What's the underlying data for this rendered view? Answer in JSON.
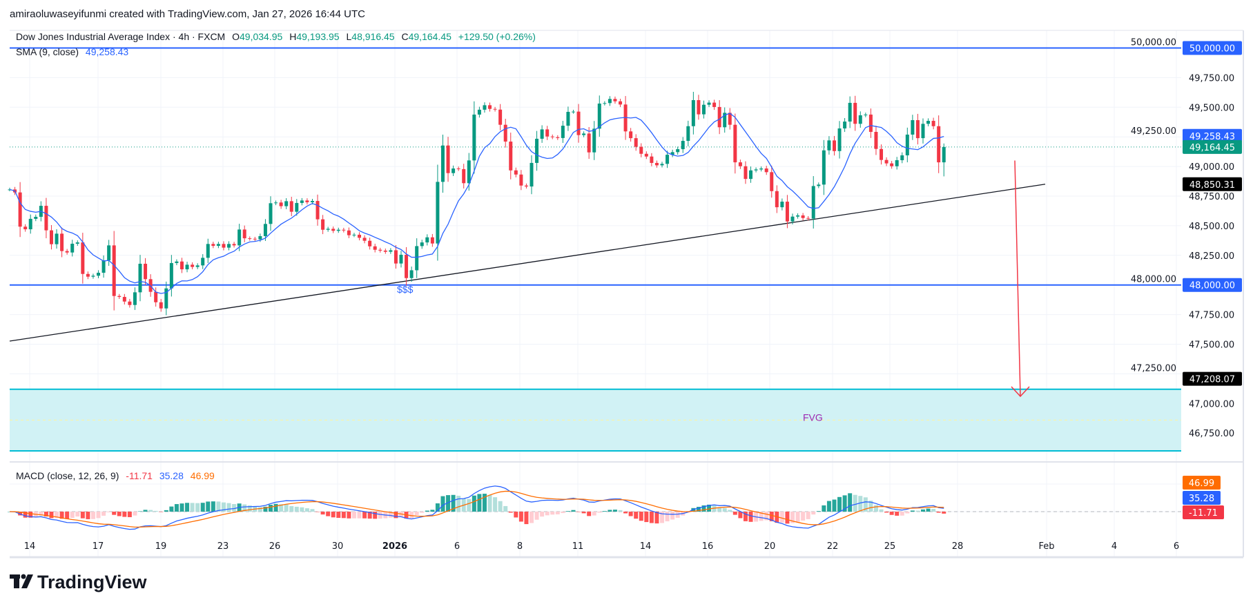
{
  "header": {
    "attribution": "amiraoluwaseyifunmi created with TradingView.com, Jan 27, 2026 16:44 UTC"
  },
  "legend": {
    "symbol": "Dow Jones Industrial Average Index · 4h · FXCM",
    "open_label": "O",
    "open": "49,034.95",
    "high_label": "H",
    "high": "49,193.95",
    "low_label": "L",
    "low": "48,916.45",
    "close_label": "C",
    "close": "49,164.45",
    "change": "+129.50 (+0.26%)",
    "sma_label": "SMA (9, close)",
    "sma_value": "49,258.43"
  },
  "macd_legend": {
    "label": "MACD (close, 12, 26, 9)",
    "histogram": "-11.71",
    "macd": "35.28",
    "signal": "46.99"
  },
  "price_axis": {
    "ticks": [
      "50,000.00",
      "49,750.00",
      "49,500.00",
      "49,250.00",
      "49,000.00",
      "48,750.00",
      "48,500.00",
      "48,250.00",
      "48,000.00",
      "47,750.00",
      "47,500.00",
      "47,250.00",
      "47,000.00",
      "46,750.00"
    ],
    "tick_values": [
      50000,
      49750,
      49500,
      49250,
      49000,
      48750,
      48500,
      48250,
      48000,
      47750,
      47500,
      47250,
      47000,
      46750
    ],
    "badges": [
      {
        "text": "50,000.00",
        "value": 50000,
        "color": "#2962ff",
        "text_color": "#ffffff"
      },
      {
        "text": "49,258.43",
        "value": 49258.43,
        "color": "#2962ff",
        "text_color": "#ffffff"
      },
      {
        "text": "49,164.45",
        "value": 49164.45,
        "color": "#089981",
        "text_color": "#ffffff"
      },
      {
        "text": "48,850.31",
        "value": 48850.31,
        "color": "#000000",
        "text_color": "#ffffff"
      },
      {
        "text": "48,000.00",
        "value": 48000,
        "color": "#2962ff",
        "text_color": "#ffffff"
      },
      {
        "text": "47,208.07",
        "value": 47208.07,
        "color": "#000000",
        "text_color": "#ffffff"
      }
    ],
    "macd_badges": [
      {
        "text": "46.99",
        "color": "#ff6d00"
      },
      {
        "text": "35.28",
        "color": "#2962ff"
      },
      {
        "text": "-11.71",
        "color": "#f23645"
      }
    ]
  },
  "time_axis": {
    "ticks": [
      "14",
      "17",
      "19",
      "23",
      "26",
      "30",
      "2026",
      "6",
      "8",
      "11",
      "14",
      "16",
      "20",
      "22",
      "25",
      "28",
      "Feb",
      "4",
      "6"
    ]
  },
  "annotations": {
    "liquidity_label": "$$$",
    "fvg_label": "FVG",
    "fvg_zone": {
      "top": 47120,
      "bottom": 46600,
      "mid": 46860,
      "fill": "#d1f2f5",
      "border": "#00bcd4"
    },
    "horizontal_levels": [
      50000,
      48000
    ],
    "level_color": "#2962ff",
    "trendline": {
      "start_price": 47526,
      "end_price": 48850.31,
      "color": "#131722"
    },
    "arrow": {
      "from_price": 49050,
      "to_price": 47060,
      "color": "#f23645"
    }
  },
  "colors": {
    "up": "#089981",
    "down": "#f23645",
    "sma": "#2962ff",
    "macd": "#2962ff",
    "signal": "#ff6d00"
  },
  "chart_data": {
    "type": "candlestick",
    "symbol": "Dow Jones Industrial Average Index",
    "interval": "4h",
    "ylim": [
      46600,
      50100
    ],
    "grid": true,
    "last": {
      "open": 49034.95,
      "high": 49193.95,
      "low": 48916.45,
      "close": 49164.45
    },
    "closes": [
      48806,
      48781,
      48492,
      48470,
      48558,
      48575,
      48668,
      48461,
      48344,
      48433,
      48286,
      48274,
      48348,
      48359,
      48093,
      48070,
      48078,
      48103,
      48208,
      48334,
      47907,
      47899,
      47860,
      47831,
      47938,
      48179,
      48049,
      47942,
      47854,
      47802,
      47971,
      48185,
      48198,
      48132,
      48171,
      48152,
      48165,
      48229,
      48346,
      48330,
      48346,
      48315,
      48346,
      48334,
      48468,
      48394,
      48390,
      48385,
      48412,
      48515,
      48690,
      48696,
      48665,
      48707,
      48618,
      48692,
      48713,
      48698,
      48709,
      48554,
      48466,
      48474,
      48457,
      48466,
      48460,
      48420,
      48424,
      48398,
      48373,
      48326,
      48297,
      48290,
      48280,
      48293,
      48181,
      48255,
      48058,
      48124,
      48328,
      48359,
      48402,
      48350,
      48870,
      49177,
      48944,
      48983,
      48978,
      48859,
      49051,
      49438,
      49479,
      49517,
      49486,
      49480,
      49352,
      49210,
      48967,
      48932,
      48839,
      48831,
      49030,
      49234,
      49313,
      49253,
      49247,
      49240,
      49344,
      49461,
      49463,
      49265,
      49278,
      49119,
      49319,
      49531,
      49535,
      49570,
      49550,
      49523,
      49296,
      49239,
      49166,
      49107,
      49084,
      49030,
      49010,
      49022,
      49099,
      49121,
      49146,
      49216,
      49340,
      49560,
      49440,
      49521,
      49539,
      49502,
      49331,
      49453,
      49352,
      49035,
      49002,
      48895,
      48967,
      48975,
      48983,
      48952,
      48792,
      48656,
      48703,
      48536,
      48577,
      48587,
      48565,
      48560,
      48835,
      48847,
      49136,
      49220,
      49130,
      49321,
      49379,
      49537,
      49360,
      49432,
      49438,
      49292,
      49148,
      49055,
      49026,
      49002,
      49053,
      49094,
      49269,
      49391,
      49239,
      49360,
      49385,
      49340,
      49034.95,
      49164.45
    ],
    "indicators": {
      "sma_period": 9,
      "macd": [
        12,
        26,
        9
      ]
    }
  }
}
